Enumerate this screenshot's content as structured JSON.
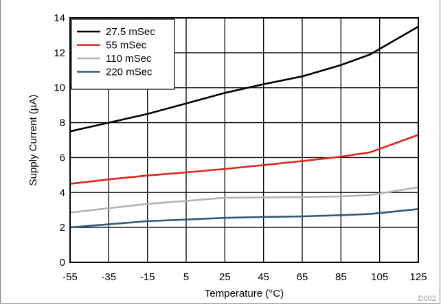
{
  "chart_data": {
    "type": "line",
    "xlabel": "Temperature (°C)",
    "ylabel": "Supply Current (µA)",
    "xlim": [
      -55,
      125
    ],
    "ylim": [
      0,
      14
    ],
    "xticks": [
      "-55",
      "-35",
      "-15",
      "5",
      "25",
      "45",
      "65",
      "85",
      "105",
      "125"
    ],
    "yticks": [
      "0",
      "2",
      "4",
      "6",
      "8",
      "10",
      "12",
      "14"
    ],
    "grid": true,
    "legend_position": "top-left",
    "figure_code": "D002",
    "series": [
      {
        "name": "27.5 mSec",
        "color": "#000000",
        "x": [
          -55,
          -35,
          -15,
          5,
          25,
          45,
          65,
          85,
          100,
          125
        ],
        "y": [
          7.5,
          8.0,
          8.5,
          9.1,
          9.7,
          10.2,
          10.65,
          11.3,
          11.9,
          13.5
        ]
      },
      {
        "name": "55 mSec",
        "color": "#e2231a",
        "x": [
          -55,
          -35,
          -15,
          5,
          25,
          45,
          65,
          85,
          100,
          125
        ],
        "y": [
          4.5,
          4.75,
          4.97,
          5.15,
          5.35,
          5.57,
          5.8,
          6.05,
          6.3,
          7.3
        ]
      },
      {
        "name": "110 mSec",
        "color": "#b3b3b3",
        "x": [
          -55,
          -35,
          -15,
          5,
          25,
          45,
          65,
          85,
          100,
          125
        ],
        "y": [
          2.85,
          3.1,
          3.35,
          3.52,
          3.7,
          3.72,
          3.74,
          3.78,
          3.85,
          4.3
        ]
      },
      {
        "name": "220 mSec",
        "color": "#2f5a78",
        "x": [
          -55,
          -35,
          -15,
          5,
          25,
          45,
          65,
          85,
          100,
          125
        ],
        "y": [
          2.0,
          2.18,
          2.36,
          2.45,
          2.55,
          2.6,
          2.63,
          2.7,
          2.77,
          3.05
        ]
      }
    ]
  }
}
